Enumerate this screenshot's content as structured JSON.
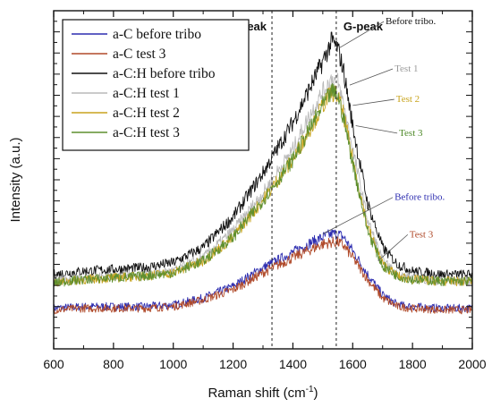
{
  "chart_data": {
    "type": "line",
    "xlabel": "Raman shift (cm",
    "xlabel_sup": "-1",
    "xlabel_close": ")",
    "ylabel": "Intensity (a.u.)",
    "xlim": [
      600,
      2000
    ],
    "ylim": [
      0,
      100
    ],
    "x_ticks": [
      "600",
      "800",
      "1000",
      "1200",
      "1400",
      "1600",
      "1800",
      "2000"
    ],
    "y_tick_labels": false,
    "grid": false,
    "legend_position": "top-left",
    "peak_lines": [
      {
        "label": "D-peak",
        "x": 1330
      },
      {
        "label": "G-peak",
        "x": 1545
      }
    ],
    "series": [
      {
        "name": "a-C before tribo",
        "color": "#2d2db0",
        "x": [
          600,
          700,
          800,
          900,
          1000,
          1100,
          1200,
          1300,
          1400,
          1450,
          1500,
          1530,
          1550,
          1570,
          1600,
          1650,
          1700,
          1750,
          1800,
          1900,
          2000
        ],
        "values": [
          12,
          12.5,
          12.5,
          12.5,
          13,
          15,
          18.5,
          24,
          28.5,
          31,
          33,
          34,
          34,
          33,
          29,
          22,
          16,
          13,
          12.5,
          12,
          12
        ]
      },
      {
        "name": "a-C test 3",
        "color": "#b04a2a",
        "x": [
          600,
          700,
          800,
          900,
          1000,
          1100,
          1200,
          1300,
          1400,
          1450,
          1500,
          1530,
          1550,
          1570,
          1600,
          1650,
          1700,
          1750,
          1800,
          1900,
          2000
        ],
        "values": [
          11.5,
          12,
          12,
          12,
          12.5,
          14.5,
          17.5,
          22.5,
          27,
          29,
          31,
          31.5,
          31.5,
          30.5,
          27,
          20.5,
          15,
          12.5,
          12,
          11.5,
          11.5
        ]
      },
      {
        "name": "a-C:H before tribo",
        "color": "#111111",
        "x": [
          600,
          700,
          800,
          900,
          1000,
          1100,
          1200,
          1300,
          1400,
          1450,
          1500,
          1530,
          1550,
          1570,
          1600,
          1650,
          1700,
          1750,
          1800,
          1900,
          2000
        ],
        "values": [
          22,
          23,
          23.5,
          24,
          25.5,
          30,
          39,
          52,
          67,
          76,
          85,
          91,
          89,
          82,
          66,
          43,
          30,
          25,
          23,
          22,
          22
        ]
      },
      {
        "name": "a-C:H test 1",
        "color": "#b9b9b9",
        "x": [
          600,
          700,
          800,
          900,
          1000,
          1100,
          1200,
          1300,
          1400,
          1450,
          1500,
          1530,
          1550,
          1570,
          1600,
          1650,
          1700,
          1750,
          1800,
          1900,
          2000
        ],
        "values": [
          20,
          21,
          21.5,
          22,
          23,
          27,
          35,
          46,
          59,
          68,
          76,
          80,
          79,
          72,
          59,
          38,
          26,
          22,
          21,
          20,
          20
        ]
      },
      {
        "name": "a-C:H test 2",
        "color": "#c8a41e",
        "x": [
          600,
          700,
          800,
          900,
          1000,
          1100,
          1200,
          1300,
          1400,
          1450,
          1500,
          1530,
          1550,
          1570,
          1600,
          1650,
          1700,
          1750,
          1800,
          1900,
          2000
        ],
        "values": [
          19.5,
          20.5,
          21,
          21.5,
          22.5,
          26,
          33,
          44,
          56,
          64,
          72,
          76,
          75,
          69,
          56,
          36,
          25,
          21.5,
          20.5,
          20,
          20
        ]
      },
      {
        "name": "a-C:H test 3",
        "color": "#5f8f2f",
        "x": [
          600,
          700,
          800,
          900,
          1000,
          1100,
          1200,
          1300,
          1400,
          1450,
          1500,
          1530,
          1550,
          1570,
          1600,
          1650,
          1700,
          1750,
          1800,
          1900,
          2000
        ],
        "values": [
          19.5,
          20.5,
          21,
          21.5,
          22.5,
          26,
          33,
          44,
          56,
          64,
          72,
          76,
          75,
          68,
          55,
          35,
          24.5,
          21.5,
          20.5,
          20,
          20
        ]
      }
    ],
    "annotations": [
      {
        "text": "Before tribo.",
        "color": "#111111",
        "x": 1710,
        "y": 96,
        "points_to": [
          1555,
          89
        ]
      },
      {
        "text": "Test 1",
        "color": "#9a9a9a",
        "x": 1740,
        "y": 82,
        "points_to": [
          1590,
          78
        ]
      },
      {
        "text": "Test 2",
        "color": "#c8a41e",
        "x": 1745,
        "y": 73,
        "points_to": [
          1600,
          72
        ]
      },
      {
        "text": "Test 3",
        "color": "#4f8a2a",
        "x": 1755,
        "y": 63,
        "points_to": [
          1610,
          66
        ]
      },
      {
        "text": "Before tribo.",
        "color": "#2d2db0",
        "x": 1740,
        "y": 44,
        "points_to": [
          1500,
          34
        ]
      },
      {
        "text": "Test 3",
        "color": "#b04a2a",
        "x": 1790,
        "y": 33,
        "points_to": [
          1685,
          26
        ]
      }
    ]
  }
}
